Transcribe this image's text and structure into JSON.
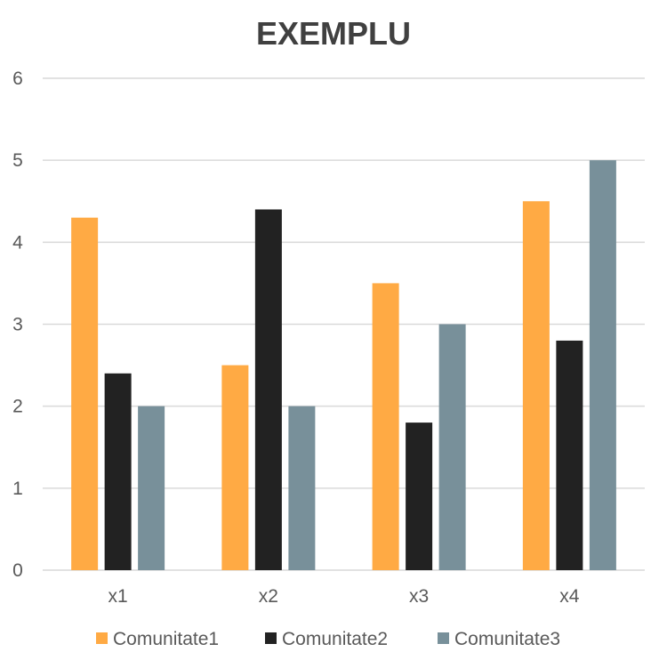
{
  "chart_data": {
    "type": "bar",
    "title": "EXEMPLU",
    "xlabel": "",
    "ylabel": "",
    "categories": [
      "x1",
      "x2",
      "x3",
      "x4"
    ],
    "series": [
      {
        "name": "Comunitate1",
        "color": "#FFAA44",
        "values": [
          4.3,
          2.5,
          3.5,
          4.5
        ]
      },
      {
        "name": "Comunitate2",
        "color": "#222222",
        "values": [
          2.4,
          4.4,
          1.8,
          2.8
        ]
      },
      {
        "name": "Comunitate3",
        "color": "#78909A",
        "values": [
          2.0,
          2.0,
          3.0,
          5.0
        ]
      }
    ],
    "ylim": [
      0,
      6
    ],
    "yticks": [
      "0",
      "1",
      "2",
      "3",
      "4",
      "5",
      "6"
    ],
    "grid": true,
    "legend_position": "bottom",
    "gridline_color": "#D9D9D9"
  }
}
